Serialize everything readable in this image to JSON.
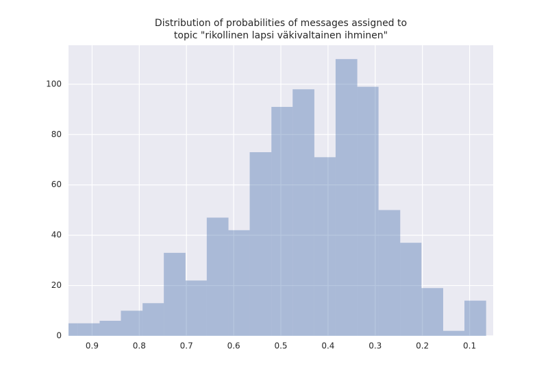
{
  "chart_data": {
    "type": "histogram",
    "title": [
      "Distribution of probabilities of messages assigned to",
      "topic \"rikollinen lapsi väkivaltainen ihminen\""
    ],
    "bins": [
      0.065,
      0.111,
      0.156,
      0.202,
      0.247,
      0.293,
      0.338,
      0.384,
      0.429,
      0.475,
      0.52,
      0.566,
      0.611,
      0.657,
      0.702,
      0.748,
      0.793,
      0.839,
      0.884,
      0.93,
      0.975
    ],
    "values": [
      14,
      2,
      19,
      37,
      50,
      99,
      110,
      71,
      98,
      91,
      73,
      42,
      47,
      22,
      33,
      13,
      10,
      6,
      5,
      5
    ],
    "color": "#4c72b0",
    "xlim": [
      0.95,
      0.05
    ],
    "xticks": [
      0.9,
      0.8,
      0.7,
      0.6,
      0.5,
      0.4,
      0.3,
      0.2,
      0.1
    ],
    "ylim": [
      0,
      115.5
    ],
    "yticks": [
      0,
      20,
      40,
      60,
      80,
      100
    ],
    "grid": true
  }
}
